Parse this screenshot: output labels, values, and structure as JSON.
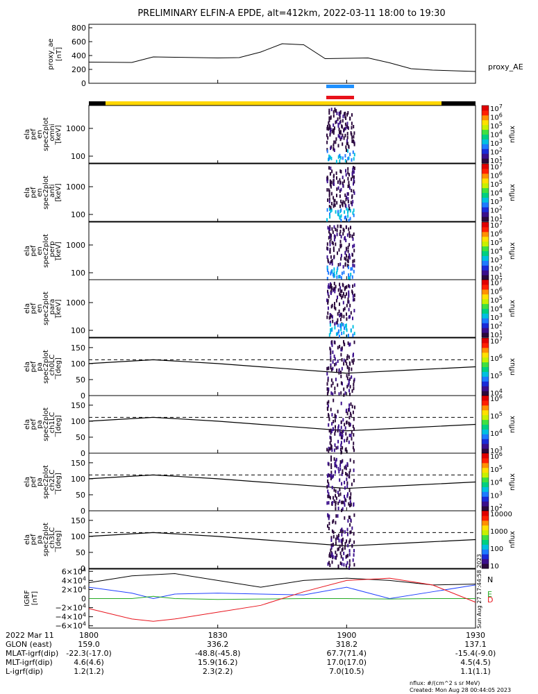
{
  "title": "PRELIMINARY ELFIN-A EPDE, alt=412km, 2022-03-11 18:00 to 19:30",
  "time_axis": {
    "range": [
      "18:00",
      "19:30"
    ],
    "tick_labels": [
      "1800",
      "1830",
      "1900",
      "1930"
    ],
    "tick_minutes": [
      0,
      30,
      60,
      90
    ]
  },
  "panels": [
    {
      "id": "proxy_ae",
      "ylabel": [
        "proxy_ae",
        "[nT]"
      ],
      "yticks": [
        "800",
        "600",
        "400",
        "200",
        "0"
      ],
      "right_label": "proxy_AE"
    },
    {
      "id": "en-omni",
      "ylabel": [
        "ela",
        "pef",
        "en",
        "spec2plot",
        "_omni",
        "[keV]"
      ],
      "yticks": [
        "1000",
        "100"
      ],
      "colorbar_label": "nflux",
      "colorbar_ticks": [
        "10^7",
        "10^6",
        "10^5",
        "10^4",
        "10^3",
        "10^2",
        "10^1"
      ]
    },
    {
      "id": "en-anti",
      "ylabel": [
        "ela",
        "pef",
        "en",
        "spec2plot",
        "_anti",
        "[keV]"
      ],
      "yticks": [
        "1000",
        "100"
      ],
      "colorbar_label": "nflux",
      "colorbar_ticks": [
        "10^7",
        "10^6",
        "10^5",
        "10^4",
        "10^3",
        "10^2",
        "10^1"
      ]
    },
    {
      "id": "en-perp",
      "ylabel": [
        "ela",
        "pef",
        "en",
        "spec2plot",
        "_perp",
        "[keV]"
      ],
      "yticks": [
        "1000",
        "100"
      ],
      "colorbar_label": "nflux",
      "colorbar_ticks": [
        "10^7",
        "10^6",
        "10^5",
        "10^4",
        "10^3",
        "10^2",
        "10^1"
      ]
    },
    {
      "id": "en-para",
      "ylabel": [
        "ela",
        "pef",
        "en",
        "spec2plot",
        "_para",
        "[keV]"
      ],
      "yticks": [
        "1000",
        "100"
      ],
      "colorbar_label": "nflux",
      "colorbar_ticks": [
        "10^7",
        "10^6",
        "10^5",
        "10^4",
        "10^3",
        "10^2",
        "10^1"
      ]
    },
    {
      "id": "pa-ch0LC",
      "ylabel": [
        "ela",
        "pef",
        "pa",
        "spec2plot",
        "_ch0LC",
        "[deg]"
      ],
      "yticks": [
        "150",
        "100",
        "50",
        "0"
      ],
      "colorbar_label": "nflux",
      "colorbar_ticks": [
        "10^7",
        "10^6",
        "10^5",
        "10^4"
      ]
    },
    {
      "id": "pa-ch1LC",
      "ylabel": [
        "ela",
        "pef",
        "pa",
        "spec2plot",
        "_ch1LC",
        "[deg]"
      ],
      "yticks": [
        "150",
        "100",
        "50",
        "0"
      ],
      "colorbar_label": "nflux",
      "colorbar_ticks": [
        "10^6",
        "10^5",
        "10^4",
        "10^3"
      ]
    },
    {
      "id": "pa-ch2LC",
      "ylabel": [
        "ela",
        "pef",
        "pa",
        "spec2plot",
        "_ch2LC",
        "[deg]"
      ],
      "yticks": [
        "150",
        "100",
        "50",
        "0"
      ],
      "colorbar_label": "nflux",
      "colorbar_ticks": [
        "10^6",
        "10^5",
        "10^4",
        "10^3",
        "10^2"
      ]
    },
    {
      "id": "pa-ch3LC",
      "ylabel": [
        "ela",
        "pef",
        "pa",
        "spec2plot",
        "_ch3LC",
        "[deg]"
      ],
      "yticks": [
        "150",
        "100",
        "50",
        "0"
      ],
      "colorbar_label": "nflux",
      "colorbar_ticks": [
        "10000",
        "1000",
        "100",
        "10"
      ]
    },
    {
      "id": "igrf",
      "ylabel": [
        "IGRF",
        "[nT]"
      ],
      "yticks": [
        "6×10^4",
        "4×10^4",
        "2×10^4",
        "0",
        "−2×10^4",
        "−4×10^4",
        "−6×10^4"
      ],
      "legend": [
        "N",
        "E",
        "D"
      ]
    }
  ],
  "footer": {
    "rows": [
      {
        "label": "2022 Mar 11",
        "values": [
          "1800",
          "1830",
          "1900",
          "1930"
        ]
      },
      {
        "label": "GLON (east)",
        "values": [
          "159.0",
          "336.2",
          "318.2",
          "137.1"
        ]
      },
      {
        "label": "MLAT-igrf(dip)",
        "values": [
          "-22.3(-17.0)",
          "-48.8(-45.8)",
          "67.7(71.4)",
          "-15.4(-9.0)"
        ]
      },
      {
        "label": "MLT-igrf(dip)",
        "values": [
          "4.6(4.6)",
          "15.9(16.2)",
          "17.0(17.0)",
          "4.5(4.5)"
        ]
      },
      {
        "label": "L-igrf(dip)",
        "values": [
          "1.2(1.2)",
          "2.3(2.2)",
          "7.0(10.5)",
          "1.1(1.1)"
        ]
      }
    ],
    "units_note": "nflux: #/(cm^2 s sr MeV)",
    "created": "Created: Mon Aug 28 00:44:05 2023",
    "side_note": "Sun Aug 27 17:44:58 2023"
  },
  "colors": {
    "blue_bar": "#1e90ff",
    "red_bar": "#e8121b",
    "yellow_bar": "#ffd700",
    "igrf_N": "#000000",
    "igrf_E": "#22aa22",
    "igrf_D": "#e8121b",
    "igrf_blue": "#1f3fff"
  },
  "chart_data": [
    {
      "type": "line",
      "title": "PRELIMINARY ELFIN-A EPDE, alt=412km, 2022-03-11 18:00 to 19:30",
      "ylabel": "proxy_ae [nT]",
      "ylim": [
        0,
        850
      ],
      "series": [
        {
          "name": "proxy_AE",
          "x": [
            0,
            10,
            15,
            20,
            30,
            35,
            40,
            45,
            50,
            55,
            60,
            65,
            70,
            75,
            80,
            85,
            90
          ],
          "y": [
            305,
            300,
            380,
            375,
            365,
            370,
            450,
            570,
            555,
            355,
            360,
            365,
            295,
            210,
            190,
            180,
            170
          ]
        }
      ]
    },
    {
      "type": "line",
      "ylabel": "IGRF [nT]",
      "ylim": [
        -65000,
        65000
      ],
      "series": [
        {
          "name": "N",
          "x": [
            0,
            10,
            20,
            30,
            40,
            50,
            60,
            70,
            80,
            90
          ],
          "y": [
            35000,
            50000,
            55000,
            40000,
            25000,
            40000,
            45000,
            40000,
            30000,
            32000
          ]
        },
        {
          "name": "blue",
          "x": [
            0,
            10,
            15,
            20,
            30,
            40,
            50,
            60,
            70,
            80,
            90
          ],
          "y": [
            25000,
            12000,
            0,
            10000,
            12000,
            10000,
            8000,
            25000,
            0,
            15000,
            30000
          ]
        },
        {
          "name": "E",
          "x": [
            0,
            10,
            15,
            20,
            30,
            40,
            50,
            60,
            70,
            80,
            90
          ],
          "y": [
            0,
            0,
            5000,
            0,
            -2000,
            -1000,
            0,
            0,
            -1000,
            0,
            0
          ]
        },
        {
          "name": "D",
          "x": [
            0,
            10,
            15,
            20,
            30,
            40,
            50,
            60,
            70,
            80,
            90
          ],
          "y": [
            -22000,
            -45000,
            -50000,
            -45000,
            -30000,
            -15000,
            15000,
            40000,
            45000,
            30000,
            -8000
          ]
        }
      ]
    }
  ]
}
